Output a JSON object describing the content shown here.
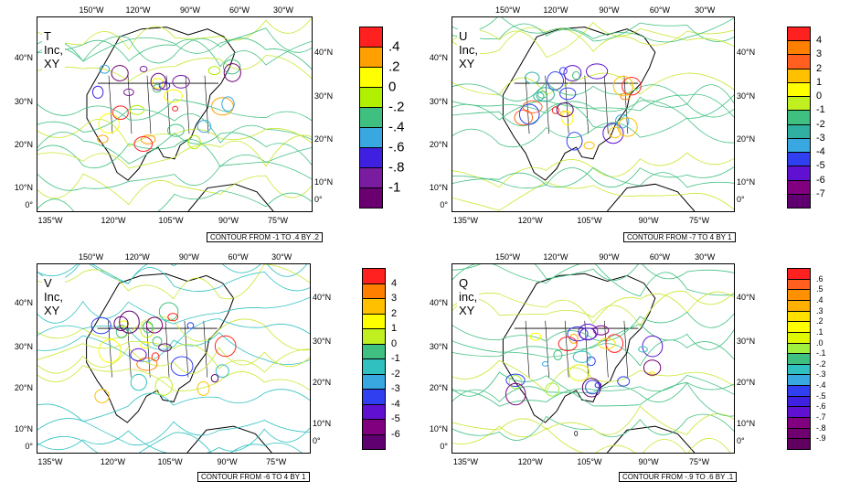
{
  "panels": [
    {
      "id": "t",
      "title": "T Inc, XY",
      "caption": "CONTOUR FROM -1 TO .4 BY .2",
      "label_size": 15,
      "levels": [
        ".4",
        ".2",
        "0",
        "-.2",
        "-.4",
        "-.6",
        "-.8",
        "-1"
      ],
      "colors": [
        "#ff2020",
        "#ffa000",
        "#ffff00",
        "#b0f000",
        "#40c080",
        "#3aa8e0",
        "#4020e0",
        "#7a1ca0",
        "#6a0070"
      ]
    },
    {
      "id": "u",
      "title": "U Inc, XY",
      "caption": "CONTOUR FROM -7 TO 4 BY 1",
      "label_size": 11,
      "levels": [
        "4",
        "3",
        "2",
        "1",
        "0",
        "-1",
        "-2",
        "-3",
        "-4",
        "-5",
        "-6",
        "-7"
      ],
      "colors": [
        "#ff2020",
        "#ff8000",
        "#ff6020",
        "#ffc000",
        "#ffff00",
        "#c0f020",
        "#40c080",
        "#30b0a0",
        "#3aa8e0",
        "#3040f0",
        "#6010d0",
        "#800080",
        "#600070"
      ]
    },
    {
      "id": "v",
      "title": "V Inc, XY",
      "caption": "CONTOUR FROM -6 TO 4 BY 1",
      "label_size": 11,
      "levels": [
        "4",
        "3",
        "2",
        "1",
        "0",
        "-1",
        "-2",
        "-3",
        "-4",
        "-5",
        "-6"
      ],
      "colors": [
        "#ff2020",
        "#ff8000",
        "#ffc000",
        "#ffff00",
        "#c0f020",
        "#40c080",
        "#30c0c0",
        "#3aa8e0",
        "#3040f0",
        "#6010d0",
        "#800080",
        "#600070"
      ]
    },
    {
      "id": "q",
      "title": "Q inc, XY",
      "caption": "CONTOUR FROM -.9 TO .6 BY .1",
      "label_size": 9,
      "levels": [
        ".6",
        ".5",
        ".4",
        ".3",
        ".2",
        ".1",
        ".0",
        "-.1",
        "-.2",
        "-.3",
        "-.4",
        "-.5",
        "-.6",
        "-.7",
        "-.8",
        "-.9"
      ],
      "colors": [
        "#ff2020",
        "#ff6020",
        "#ff9000",
        "#ffb000",
        "#ffe000",
        "#ffff00",
        "#e0f800",
        "#a0f040",
        "#40c080",
        "#30c0c0",
        "#3aa8e0",
        "#3040f0",
        "#4020e0",
        "#6010d0",
        "#800080",
        "#700070",
        "#600060"
      ]
    }
  ],
  "axes": {
    "top_lon": [
      "150°W",
      "120°W",
      "90°W",
      "60°W",
      "30°W"
    ],
    "bottom_lon": [
      "135°W",
      "120°W",
      "105°W",
      "90°W",
      "75°W"
    ],
    "lat": [
      "40°N",
      "30°N",
      "20°N",
      "10°N",
      "0°"
    ]
  },
  "stray_labels": {
    "q_zero": "0"
  }
}
